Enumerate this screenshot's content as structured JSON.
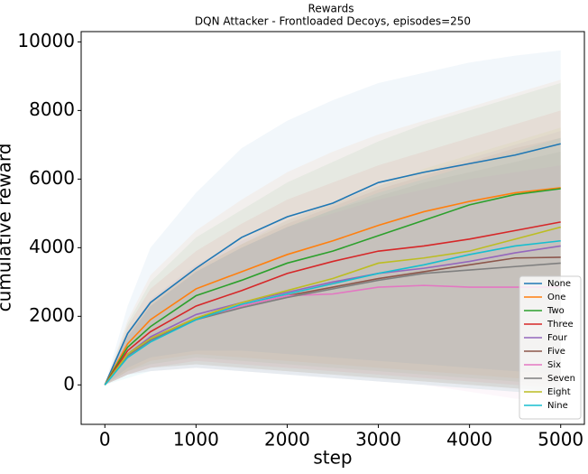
{
  "chart_data": {
    "type": "line",
    "title": "Rewards",
    "subtitle": "DQN Attacker - Frontloaded Decoys, episodes=250",
    "x_label": "step",
    "y_label": "cumulative reward",
    "x": [
      0,
      250,
      500,
      1000,
      1500,
      2000,
      2500,
      3000,
      3500,
      4000,
      4500,
      5000
    ],
    "xlim": [
      -260,
      5260
    ],
    "xticks": [
      0,
      1000,
      2000,
      3000,
      4000,
      5000
    ],
    "ylim": [
      -1150,
      10300
    ],
    "yticks": [
      0,
      2000,
      4000,
      6000,
      8000,
      10000
    ],
    "legend": "lower right",
    "grid": false,
    "series": [
      {
        "name": "None",
        "color": "#1f77b4",
        "values": [
          0,
          1500,
          2400,
          3400,
          4300,
          4900,
          5300,
          5900,
          6200,
          6450,
          6700,
          7030
        ],
        "upper": [
          0,
          2300,
          4000,
          5600,
          6900,
          7700,
          8300,
          8800,
          9100,
          9400,
          9600,
          9750
        ],
        "lower": [
          0,
          500,
          800,
          1000,
          1000,
          900,
          800,
          700,
          600,
          500,
          400,
          300
        ]
      },
      {
        "name": "One",
        "color": "#ff7f0e",
        "values": [
          0,
          1200,
          1900,
          2800,
          3300,
          3800,
          4200,
          4650,
          5050,
          5350,
          5600,
          5750
        ],
        "upper": [
          0,
          1900,
          3200,
          4500,
          5400,
          6200,
          6800,
          7300,
          7700,
          8100,
          8500,
          8900
        ],
        "lower": [
          0,
          400,
          700,
          900,
          800,
          700,
          600,
          500,
          400,
          300,
          200,
          100
        ]
      },
      {
        "name": "Two",
        "color": "#2ca02c",
        "values": [
          0,
          1100,
          1700,
          2600,
          3050,
          3550,
          3900,
          4350,
          4800,
          5250,
          5550,
          5720
        ],
        "upper": [
          0,
          1800,
          3000,
          4300,
          5100,
          5900,
          6500,
          7100,
          7600,
          8000,
          8400,
          8800
        ],
        "lower": [
          0,
          400,
          600,
          800,
          700,
          600,
          500,
          400,
          300,
          200,
          100,
          0
        ]
      },
      {
        "name": "Three",
        "color": "#d62728",
        "values": [
          0,
          1000,
          1550,
          2300,
          2750,
          3250,
          3600,
          3900,
          4050,
          4250,
          4500,
          4750
        ],
        "upper": [
          0,
          1700,
          2800,
          3900,
          4700,
          5400,
          5900,
          6400,
          6800,
          7200,
          7600,
          8000
        ],
        "lower": [
          0,
          300,
          500,
          700,
          600,
          500,
          400,
          300,
          200,
          100,
          0,
          -100
        ]
      },
      {
        "name": "Four",
        "color": "#9467bd",
        "values": [
          0,
          900,
          1400,
          2050,
          2400,
          2700,
          3000,
          3250,
          3400,
          3600,
          3850,
          4050
        ],
        "upper": [
          0,
          1500,
          2500,
          3500,
          4200,
          4800,
          5300,
          5800,
          6200,
          6600,
          7000,
          7400
        ],
        "lower": [
          0,
          300,
          500,
          600,
          500,
          400,
          300,
          200,
          100,
          0,
          -100,
          -200
        ]
      },
      {
        "name": "Five",
        "color": "#8c564b",
        "values": [
          0,
          900,
          1350,
          1950,
          2300,
          2600,
          2850,
          3100,
          3300,
          3500,
          3700,
          3720
        ],
        "upper": [
          0,
          1500,
          2400,
          3400,
          4100,
          4700,
          5200,
          5700,
          6100,
          6500,
          6900,
          7200
        ],
        "lower": [
          0,
          300,
          500,
          600,
          500,
          400,
          300,
          200,
          100,
          0,
          -100,
          -200
        ]
      },
      {
        "name": "Six",
        "color": "#e377c2",
        "values": [
          0,
          850,
          1300,
          1900,
          2300,
          2600,
          2650,
          2850,
          2900,
          2850,
          2850,
          2850
        ],
        "upper": [
          0,
          1400,
          2300,
          3300,
          4000,
          4600,
          5000,
          5400,
          5700,
          6000,
          6200,
          6400
        ],
        "lower": [
          0,
          300,
          400,
          500,
          400,
          300,
          200,
          100,
          0,
          -200,
          -400,
          -500
        ]
      },
      {
        "name": "Seven",
        "color": "#7f7f7f",
        "values": [
          0,
          850,
          1300,
          1900,
          2250,
          2550,
          2800,
          3050,
          3250,
          3350,
          3450,
          3550
        ],
        "upper": [
          0,
          1400,
          2300,
          3300,
          4000,
          4600,
          5100,
          5500,
          5900,
          6200,
          6500,
          6800
        ],
        "lower": [
          0,
          300,
          400,
          500,
          400,
          300,
          200,
          100,
          0,
          -100,
          -200,
          -300
        ]
      },
      {
        "name": "Eight",
        "color": "#bcbd22",
        "values": [
          0,
          900,
          1350,
          1950,
          2400,
          2750,
          3100,
          3550,
          3700,
          3900,
          4250,
          4600
        ],
        "upper": [
          0,
          1500,
          2400,
          3400,
          4100,
          4800,
          5300,
          5800,
          6300,
          6700,
          7100,
          7500
        ],
        "lower": [
          0,
          300,
          500,
          600,
          500,
          400,
          300,
          200,
          100,
          0,
          -100,
          -200
        ]
      },
      {
        "name": "Nine",
        "color": "#17becf",
        "values": [
          0,
          800,
          1250,
          1900,
          2350,
          2650,
          2950,
          3250,
          3500,
          3800,
          4050,
          4200
        ],
        "upper": [
          0,
          1400,
          2300,
          3300,
          4000,
          4600,
          5100,
          5600,
          6000,
          6400,
          6800,
          7200
        ],
        "lower": [
          0,
          200,
          400,
          500,
          400,
          300,
          200,
          100,
          0,
          -100,
          -200,
          -300
        ]
      }
    ]
  }
}
